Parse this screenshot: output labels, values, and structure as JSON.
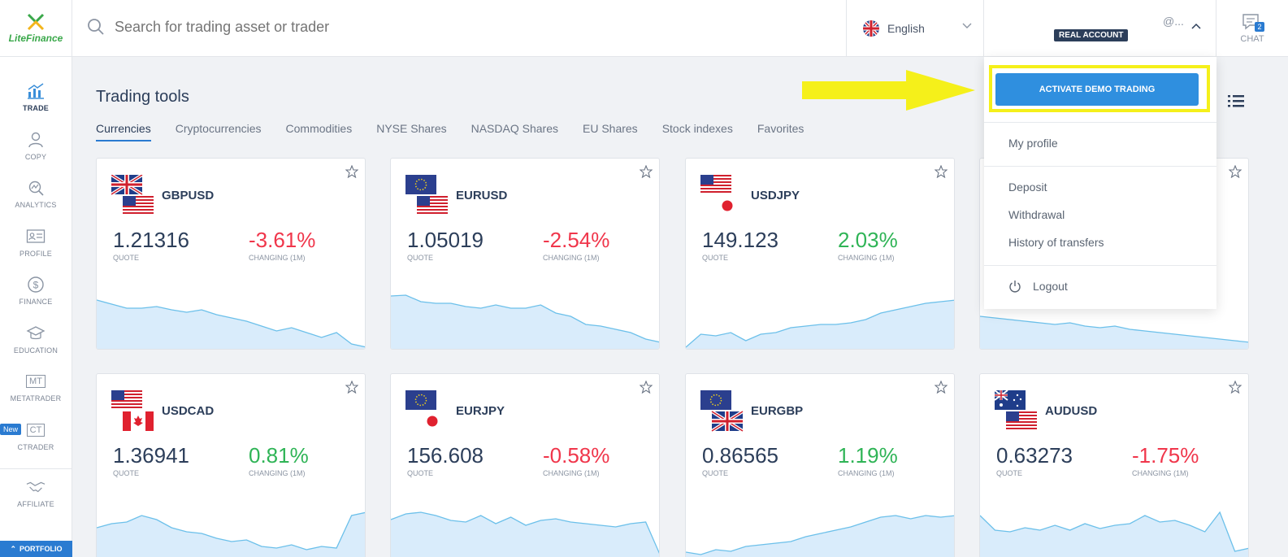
{
  "brand": {
    "name": "LiteFinance"
  },
  "sidebar": {
    "items": [
      {
        "label": "TRADE",
        "icon": "chart-icon"
      },
      {
        "label": "COPY",
        "icon": "person-icon"
      },
      {
        "label": "ANALYTICS",
        "icon": "analytics-icon"
      },
      {
        "label": "PROFILE",
        "icon": "id-card-icon"
      },
      {
        "label": "FINANCE",
        "icon": "dollar-icon"
      },
      {
        "label": "EDUCATION",
        "icon": "graduation-cap-icon"
      },
      {
        "label": "METATRADER",
        "icon": "mt-icon",
        "icon_text": "MT"
      },
      {
        "label": "CTRADER",
        "icon": "ct-icon",
        "icon_text": "CT",
        "badge": "New"
      },
      {
        "label": "AFFILIATE",
        "icon": "handshake-icon"
      }
    ],
    "portfolio_label": "PORTFOLIO"
  },
  "header": {
    "search_placeholder": "Search for trading asset or trader",
    "language": "English",
    "user": "@...",
    "account_badge": "REAL ACCOUNT",
    "chat_label": "CHAT",
    "chat_count": "2"
  },
  "main": {
    "title": "Trading tools",
    "tabs": [
      "Currencies",
      "Cryptocurrencies",
      "Commodities",
      "NYSE Shares",
      "NASDAQ Shares",
      "EU Shares",
      "Stock indexes",
      "Favorites"
    ],
    "quote_label": "QUOTE",
    "change_label": "CHANGING (1M)",
    "cards": [
      {
        "pair": "GBPUSD",
        "quote": "1.21316",
        "change": "-3.61%",
        "trend": [
          40,
          45,
          50,
          50,
          48,
          52,
          55,
          52,
          58,
          62,
          66,
          72,
          78,
          74,
          80,
          86,
          80,
          94,
          98
        ]
      },
      {
        "pair": "EURUSD",
        "quote": "1.05019",
        "change": "-2.54%",
        "trend": [
          35,
          34,
          42,
          44,
          44,
          48,
          50,
          46,
          50,
          50,
          46,
          56,
          60,
          70,
          72,
          76,
          80,
          88,
          92
        ]
      },
      {
        "pair": "USDJPY",
        "quote": "149.123",
        "change": "2.03%",
        "trend": [
          98,
          82,
          84,
          80,
          90,
          82,
          80,
          74,
          72,
          70,
          70,
          68,
          64,
          56,
          52,
          48,
          44,
          42,
          40
        ]
      },
      {
        "pair": "",
        "quote": "",
        "change": "",
        "trend": [
          60,
          62,
          64,
          66,
          68,
          70,
          68,
          72,
          74,
          72,
          76,
          78,
          80,
          82,
          84,
          86,
          88,
          90,
          92
        ]
      },
      {
        "pair": "USDCAD",
        "quote": "1.36941",
        "change": "0.81%",
        "trend": [
          55,
          50,
          48,
          40,
          45,
          55,
          60,
          62,
          68,
          72,
          70,
          78,
          80,
          76,
          82,
          78,
          80,
          40,
          36
        ]
      },
      {
        "pair": "EURJPY",
        "quote": "156.608",
        "change": "-0.58%",
        "trend": [
          45,
          38,
          36,
          40,
          46,
          48,
          40,
          50,
          42,
          52,
          46,
          44,
          48,
          50,
          52,
          54,
          50,
          48,
          90
        ]
      },
      {
        "pair": "EURGBP",
        "quote": "0.86565",
        "change": "1.19%",
        "trend": [
          85,
          88,
          82,
          84,
          78,
          76,
          74,
          72,
          66,
          62,
          58,
          54,
          48,
          42,
          40,
          44,
          40,
          42,
          40
        ]
      },
      {
        "pair": "AUDUSD",
        "quote": "0.63273",
        "change": "-1.75%",
        "trend": [
          40,
          58,
          60,
          55,
          58,
          52,
          58,
          50,
          56,
          52,
          50,
          40,
          48,
          46,
          52,
          60,
          36,
          84,
          80
        ]
      }
    ]
  },
  "dropdown": {
    "demo_button": "ACTIVATE DEMO TRADING",
    "my_profile": "My profile",
    "deposit": "Deposit",
    "withdrawal": "Withdrawal",
    "history": "History of transfers",
    "logout": "Logout"
  },
  "colors": {
    "accent": "#2a7bd1",
    "highlight": "#f5f01a",
    "negative": "#f0364b",
    "positive": "#2fb456",
    "chart_fill": "#d9ecfb",
    "chart_line": "#6cc0ea"
  }
}
